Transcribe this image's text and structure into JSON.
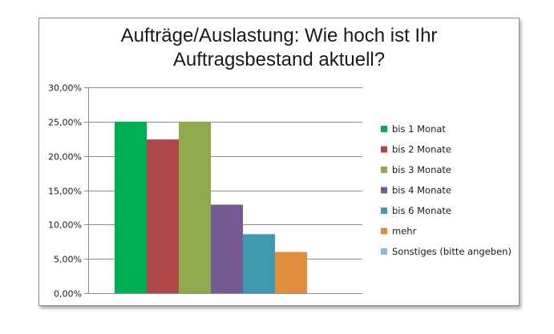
{
  "chart_data": {
    "type": "bar",
    "title_lines": [
      "Aufträge/Auslastung: Wie hoch ist Ihr",
      "Auftragsbestand aktuell?"
    ],
    "ylim": [
      0,
      0.3
    ],
    "yticks": [
      0,
      0.05,
      0.1,
      0.15,
      0.2,
      0.25,
      0.3
    ],
    "ytick_labels": [
      "0,00%",
      "5,00%",
      "10,00%",
      "15,00%",
      "20,00%",
      "25,00%",
      "30,00%"
    ],
    "grid": true,
    "legend_position": "right",
    "series": [
      {
        "name": "bis 1 Monat",
        "value": 0.25,
        "color": "#00b050"
      },
      {
        "name": "bis 2 Monate",
        "value": 0.224,
        "color": "#b04848"
      },
      {
        "name": "bis 3 Monate",
        "value": 0.25,
        "color": "#8faa4c"
      },
      {
        "name": "bis 4 Monate",
        "value": 0.129,
        "color": "#755a93"
      },
      {
        "name": "bis 6 Monate",
        "value": 0.086,
        "color": "#3f9ab0"
      },
      {
        "name": "mehr",
        "value": 0.06,
        "color": "#e08d3c"
      },
      {
        "name": "Sonstiges (bitte angeben)",
        "value": 0,
        "color": "#93b3d7"
      }
    ]
  }
}
